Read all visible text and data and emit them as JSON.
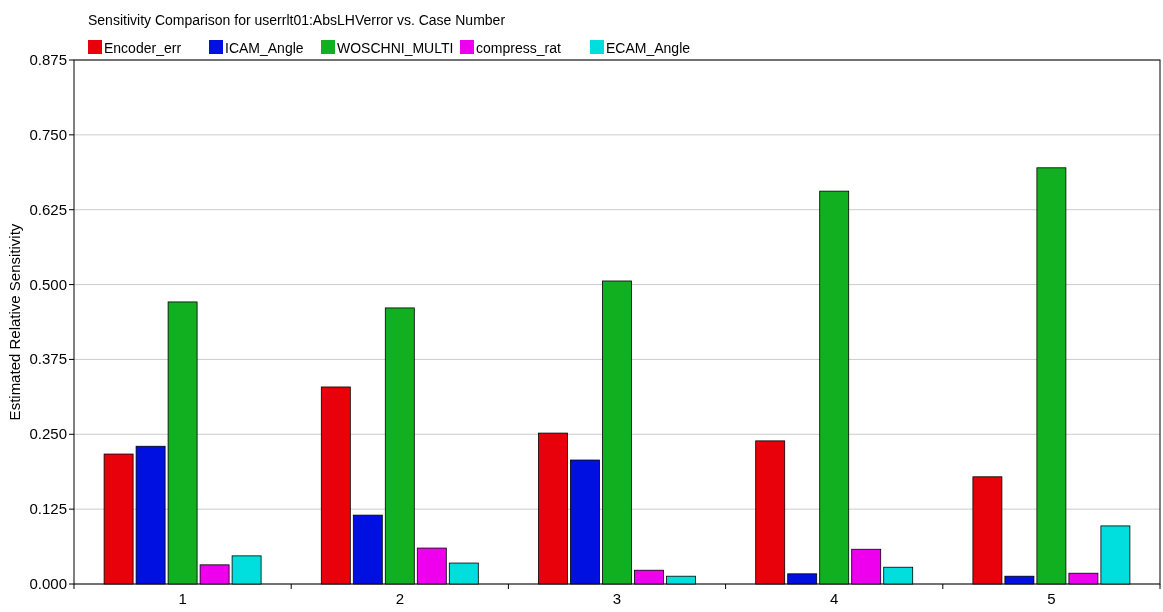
{
  "chart_data": {
    "type": "bar",
    "title": "Sensitivity Comparison for userrlt01:AbsLHVerror vs. Case Number",
    "ylabel": "Estimated Relative Sensitivity",
    "categories": [
      "1",
      "2",
      "3",
      "4",
      "5"
    ],
    "series": [
      {
        "name": "Encoder_err",
        "color": "#e8000a",
        "values": [
          0.217,
          0.329,
          0.252,
          0.239,
          0.179
        ]
      },
      {
        "name": "ICAM_Angle",
        "color": "#0010e0",
        "values": [
          0.23,
          0.115,
          0.207,
          0.017,
          0.013
        ]
      },
      {
        "name": "WOSCHNI_MULTI",
        "color": "#10b020",
        "values": [
          0.471,
          0.461,
          0.506,
          0.656,
          0.695
        ]
      },
      {
        "name": "compress_rat",
        "color": "#ee00ee",
        "values": [
          0.032,
          0.06,
          0.023,
          0.058,
          0.018
        ]
      },
      {
        "name": "ECAM_Angle",
        "color": "#00dddd",
        "values": [
          0.047,
          0.035,
          0.013,
          0.028,
          0.097
        ]
      }
    ],
    "ylim": [
      0,
      0.875
    ],
    "yticks": [
      {
        "value": 0,
        "label": "0.000"
      },
      {
        "value": 0.125,
        "label": "0.125"
      },
      {
        "value": 0.25,
        "label": "0.250"
      },
      {
        "value": 0.375,
        "label": "0.375"
      },
      {
        "value": 0.5,
        "label": "0.500"
      },
      {
        "value": 0.625,
        "label": "0.625"
      },
      {
        "value": 0.75,
        "label": "0.750"
      },
      {
        "value": 0.875,
        "label": "0.875"
      }
    ],
    "grid": "y",
    "legend": "top left"
  }
}
